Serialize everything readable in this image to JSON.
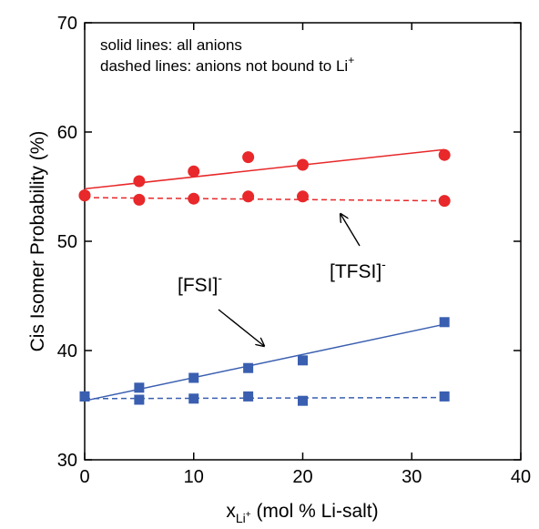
{
  "chart_data": {
    "type": "scatter",
    "y_label": "Cis Isomer Probability (%)",
    "x_label": {
      "main": "x",
      "sub": "Li",
      "sub_sup": "+",
      "rest": " (mol % Li-salt)"
    },
    "xlim": [
      0,
      40
    ],
    "xticks": [
      0,
      10,
      20,
      30,
      40
    ],
    "ylim": [
      30,
      70
    ],
    "yticks": [
      30,
      40,
      50,
      60,
      70
    ],
    "x": [
      0,
      5,
      10,
      15,
      20,
      33
    ],
    "series": [
      {
        "color": "#e8282a",
        "marker": "circle",
        "values": [
          54.2,
          55.5,
          56.4,
          57.7,
          57.0,
          57.9
        ]
      },
      {
        "color": "#e8282a",
        "marker": "circle",
        "values": [
          54.2,
          53.8,
          53.9,
          54.1,
          54.1,
          53.7
        ]
      },
      {
        "color": "#3a5fb0",
        "marker": "square",
        "values": [
          35.8,
          36.6,
          37.5,
          38.4,
          39.1,
          42.6
        ]
      },
      {
        "color": "#3a5fb0",
        "marker": "square",
        "values": [
          35.8,
          35.5,
          35.6,
          35.8,
          35.4,
          35.8
        ]
      }
    ],
    "fits": [
      {
        "color": "#e8282a",
        "dashed": false,
        "x": [
          0,
          33
        ],
        "values": [
          54.8,
          58.4
        ]
      },
      {
        "color": "#e8282a",
        "dashed": true,
        "x": [
          0,
          33
        ],
        "values": [
          54.0,
          53.7
        ]
      },
      {
        "color": "#3a5fb0",
        "dashed": false,
        "x": [
          0,
          33
        ],
        "values": [
          35.4,
          42.4
        ]
      },
      {
        "color": "#3a5fb0",
        "dashed": true,
        "x": [
          0,
          33
        ],
        "values": [
          35.6,
          35.7
        ]
      }
    ],
    "annotations": [
      {
        "text": "solid lines: all anions"
      },
      {
        "text": "dashed lines: anions not bound to Li",
        "sup": "+"
      },
      {
        "text": "[TFSI]",
        "sup": "-"
      },
      {
        "text": "[FSI]",
        "sup": "-"
      }
    ]
  }
}
